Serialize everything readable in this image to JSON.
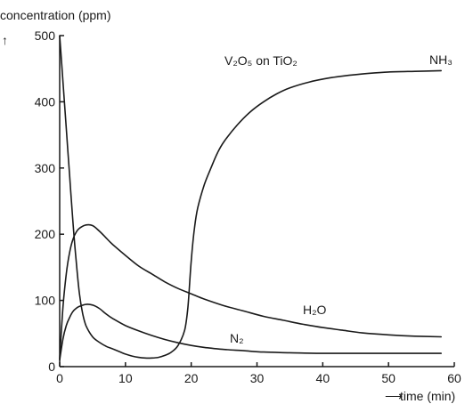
{
  "chart_data": {
    "type": "line",
    "ylabel": "concentration (ppm)",
    "xlabel": "time (min)",
    "annotation": "V₂O₅ on TiO₂",
    "xlim": [
      0,
      60
    ],
    "ylim": [
      0,
      500
    ],
    "x_ticks": [
      0,
      10,
      20,
      30,
      40,
      50,
      60
    ],
    "y_ticks": [
      0,
      100,
      200,
      300,
      400,
      500
    ],
    "grid": false,
    "series": [
      {
        "name": "NH₃",
        "x": [
          0,
          0.5,
          1,
          1.5,
          2,
          2.5,
          3,
          3.5,
          4,
          5,
          6,
          7,
          8,
          9,
          10,
          11,
          12,
          13,
          14,
          15,
          16,
          17,
          18,
          19,
          19.5,
          20,
          20.5,
          21,
          22,
          23,
          24,
          25,
          27,
          29,
          31,
          33,
          35,
          38,
          41,
          44,
          47,
          50,
          54,
          58
        ],
        "values": [
          500,
          430,
          360,
          290,
          220,
          160,
          110,
          80,
          62,
          45,
          37,
          31,
          27,
          23,
          19,
          16,
          14,
          13,
          13,
          14,
          17,
          22,
          32,
          55,
          90,
          160,
          210,
          240,
          275,
          300,
          323,
          340,
          365,
          385,
          400,
          412,
          421,
          430,
          436,
          440,
          443,
          445,
          446,
          447
        ]
      },
      {
        "name": "H₂O",
        "x": [
          0,
          0.5,
          1,
          1.5,
          2,
          2.5,
          3,
          4,
          5,
          6,
          7,
          8,
          10,
          12,
          14,
          16,
          18,
          20,
          22,
          25,
          28,
          31,
          34,
          37,
          40,
          43,
          46,
          50,
          54,
          58
        ],
        "values": [
          12,
          90,
          140,
          172,
          192,
          203,
          209,
          214,
          213,
          205,
          195,
          185,
          168,
          152,
          140,
          128,
          118,
          110,
          102,
          92,
          84,
          76,
          70,
          64,
          59,
          55,
          51,
          48,
          46,
          45
        ]
      },
      {
        "name": "N₂",
        "x": [
          0,
          0.5,
          1,
          1.5,
          2,
          2.5,
          3,
          4,
          5,
          6,
          7,
          8,
          10,
          12,
          14,
          16,
          18,
          20,
          22,
          25,
          28,
          31,
          35,
          40,
          45,
          50,
          54,
          58
        ],
        "values": [
          10,
          42,
          62,
          74,
          83,
          88,
          91,
          94,
          93,
          88,
          80,
          73,
          62,
          54,
          47,
          41,
          36,
          32,
          29,
          26,
          24,
          22,
          21,
          20,
          20,
          20,
          20,
          20
        ]
      }
    ],
    "colors": {
      "line": "#1a1a1a",
      "background": "#ffffff"
    }
  }
}
